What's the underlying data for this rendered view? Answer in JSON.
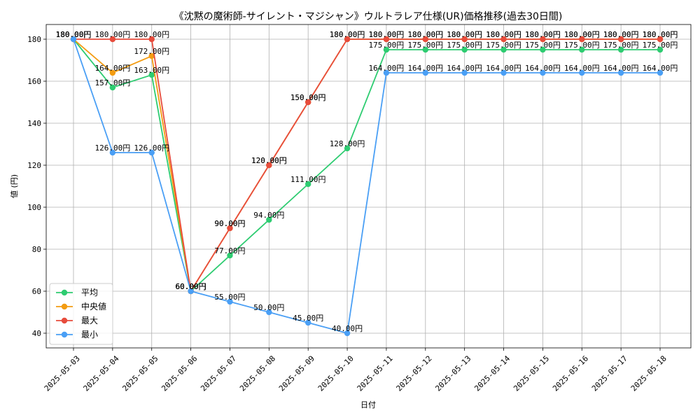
{
  "chart_data": {
    "type": "line",
    "title": "《沈黙の魔術師-サイレント・マジシャン》ウルトラレア仕様(UR)価格推移(過去30日間)",
    "xlabel": "日付",
    "ylabel": "値 (円)",
    "ylim": [
      33,
      187
    ],
    "yticks": [
      40,
      60,
      80,
      100,
      120,
      140,
      160,
      180
    ],
    "grid": true,
    "legend_position": "lower-left",
    "label_suffix": "円",
    "categories": [
      "2025-05-03",
      "2025-05-04",
      "2025-05-05",
      "2025-05-06",
      "2025-05-07",
      "2025-05-08",
      "2025-05-09",
      "2025-05-10",
      "2025-05-11",
      "2025-05-12",
      "2025-05-13",
      "2025-05-14",
      "2025-05-15",
      "2025-05-16",
      "2025-05-17",
      "2025-05-18"
    ],
    "series": [
      {
        "name": "平均",
        "color": "#2ecc71",
        "values": [
          180,
          157,
          163,
          60,
          77,
          94,
          111,
          128,
          175,
          175,
          175,
          175,
          175,
          175,
          175,
          175
        ]
      },
      {
        "name": "中央値",
        "color": "#f39c12",
        "values": [
          180,
          164,
          172,
          60,
          90,
          120,
          150,
          180,
          180,
          180,
          180,
          180,
          180,
          180,
          180,
          180
        ]
      },
      {
        "name": "最大",
        "color": "#e74c3c",
        "values": [
          180,
          180,
          180,
          60,
          90,
          120,
          150,
          180,
          180,
          180,
          180,
          180,
          180,
          180,
          180,
          180
        ]
      },
      {
        "name": "最小",
        "color": "#4a9ff5",
        "values": [
          180,
          126,
          126,
          60,
          55,
          50,
          45,
          40,
          164,
          164,
          164,
          164,
          164,
          164,
          164,
          164
        ]
      }
    ]
  }
}
